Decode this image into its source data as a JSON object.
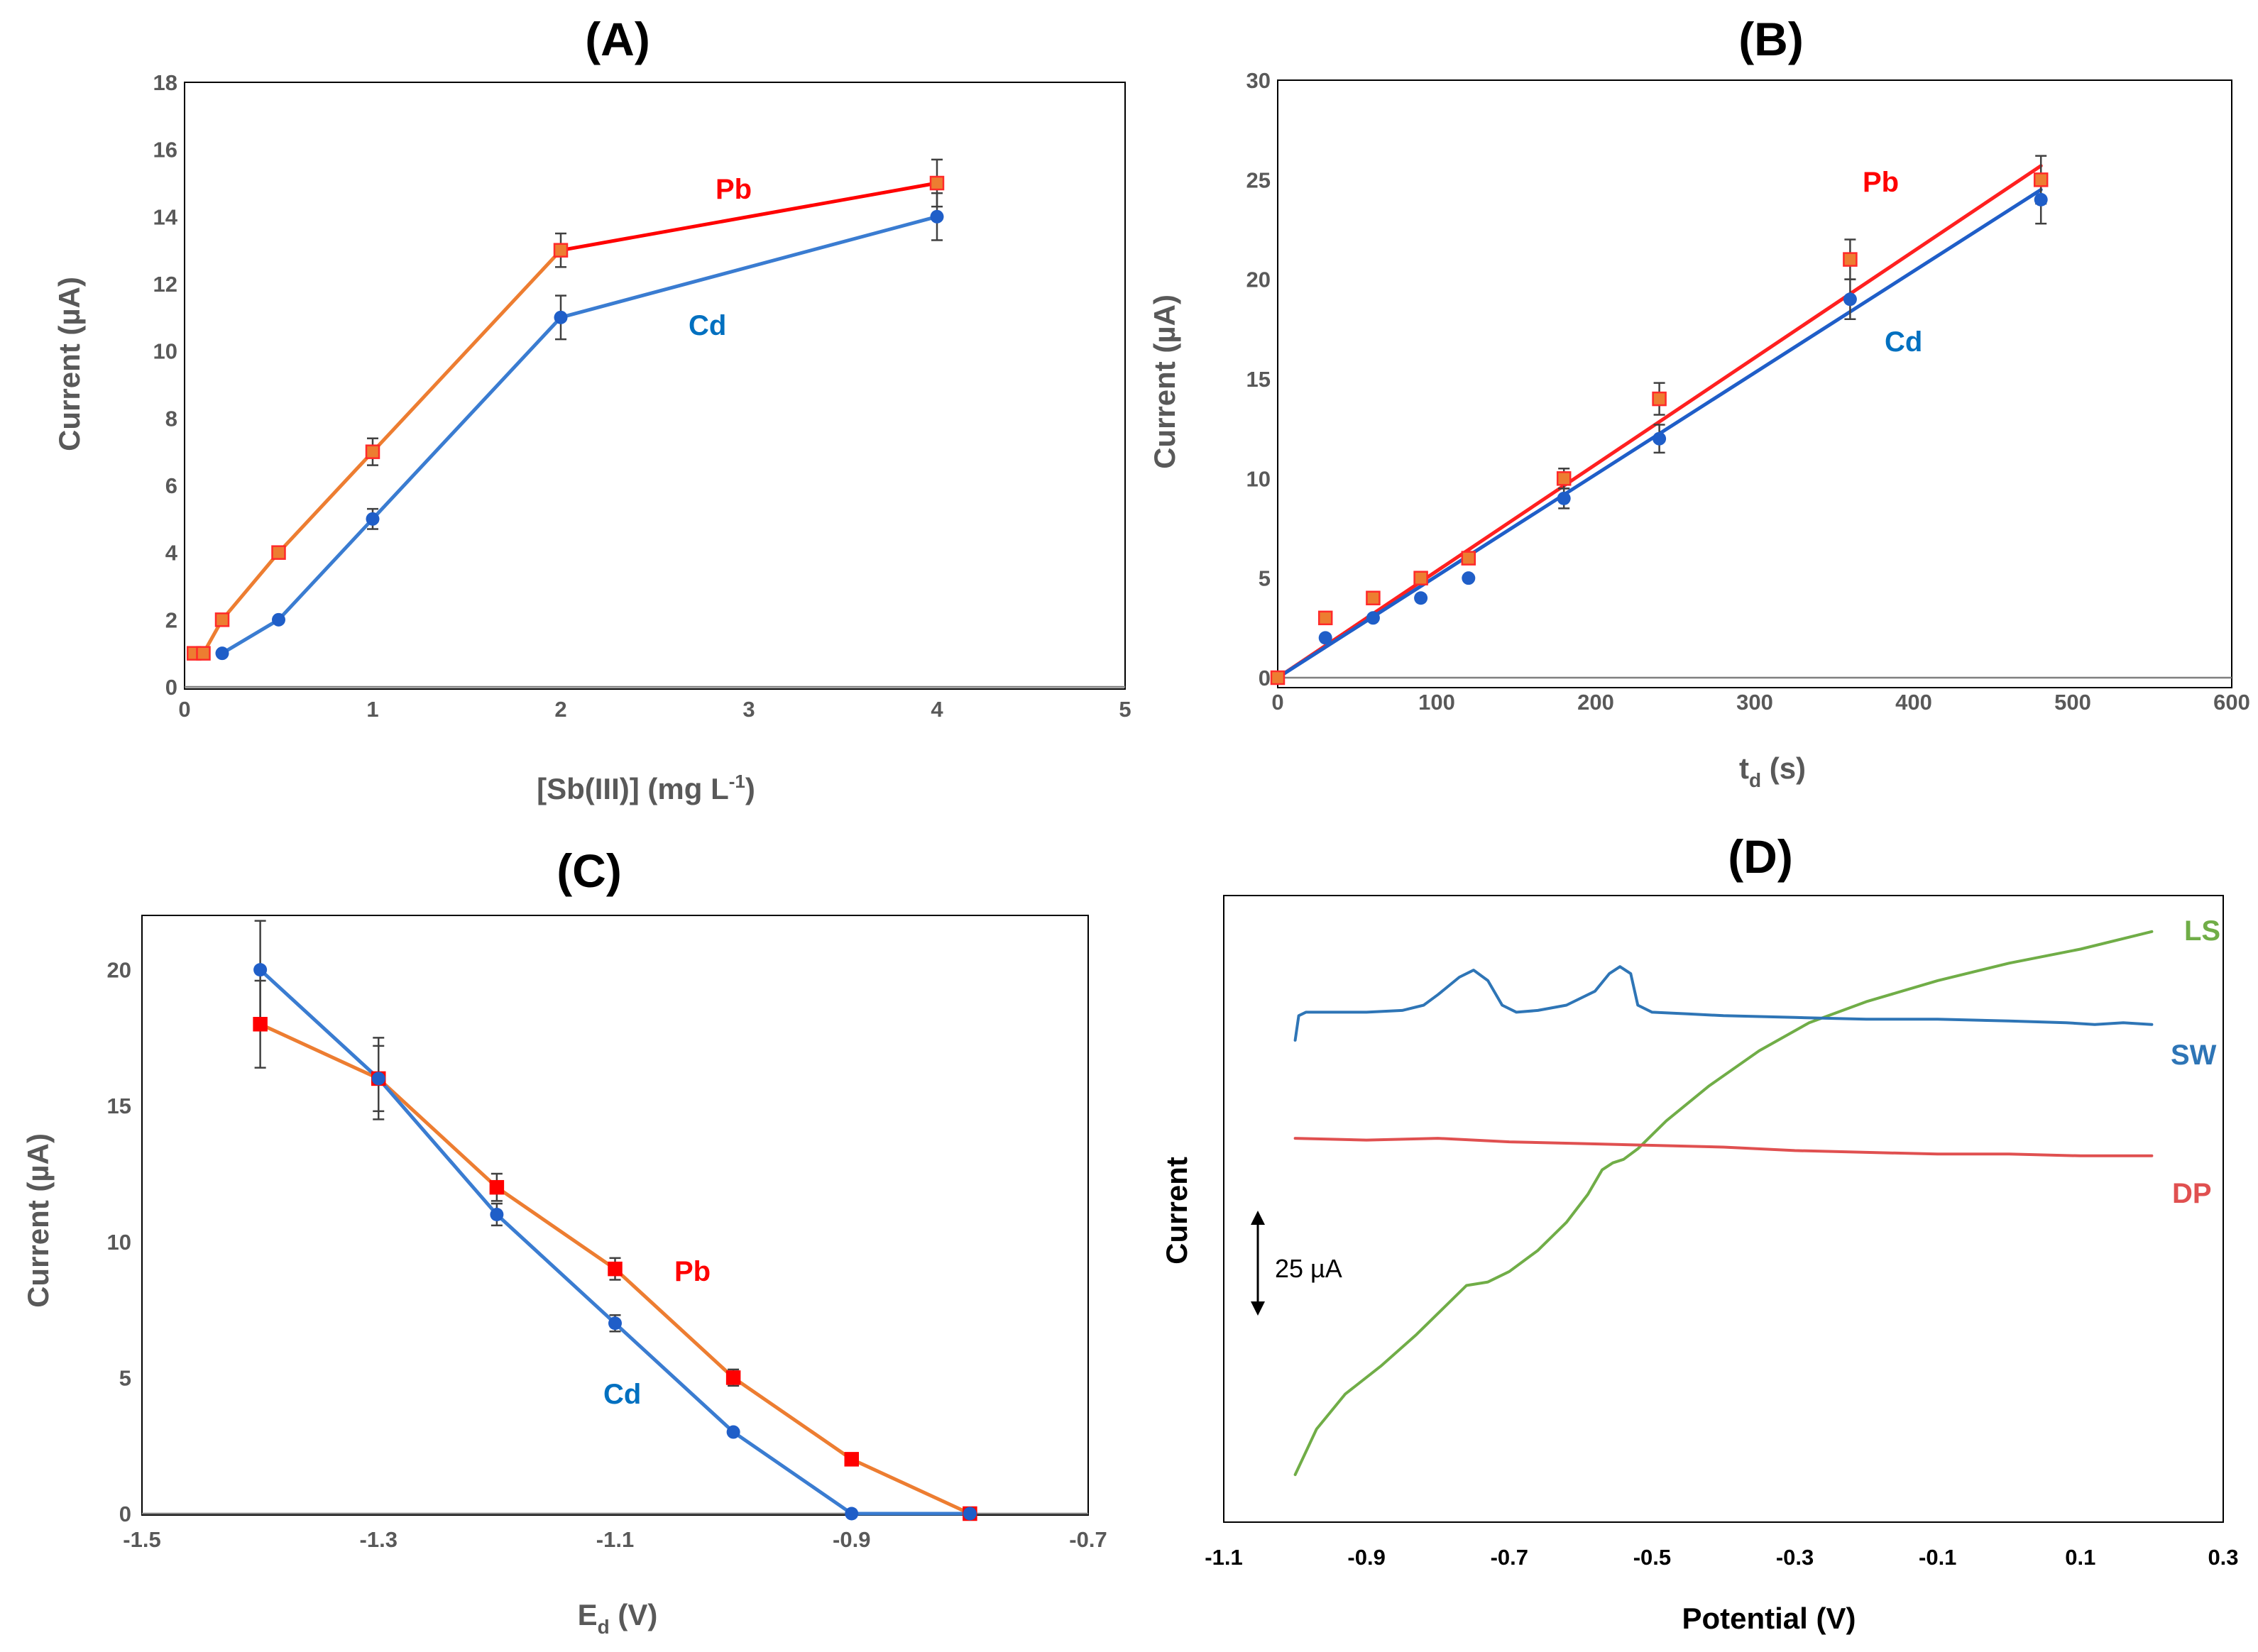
{
  "chart_data": [
    {
      "panel": "A",
      "type": "line",
      "title": "(A)",
      "xlabel": "[Sb(III)] (mg L",
      "xlabel_sup": "-1",
      "xlabel_end": ")",
      "ylabel": "Current (µA)",
      "xlim": [
        0,
        5
      ],
      "ylim": [
        0,
        18
      ],
      "xticks": [
        "0",
        "1",
        "2",
        "3",
        "4",
        "5"
      ],
      "yticks": [
        "0",
        "2",
        "4",
        "6",
        "8",
        "10",
        "12",
        "14",
        "16",
        "18"
      ],
      "series": [
        {
          "name": "Pb",
          "label_color": "#ff0000",
          "marker_color": "#ed7d31",
          "x": [
            0.05,
            0.1,
            0.2,
            0.5,
            1,
            2,
            4
          ],
          "y": [
            1,
            1,
            2,
            4,
            7,
            13,
            15
          ],
          "err": [
            0,
            0,
            0,
            0,
            0.4,
            0.5,
            0.7
          ],
          "line_segments": [
            {
              "x": [
                0.05,
                0.1,
                0.2,
                0.5,
                1,
                2
              ],
              "color": "#ed7d31"
            },
            {
              "x": [
                2,
                4
              ],
              "color": "#ff0000"
            }
          ]
        },
        {
          "name": "Cd",
          "label_color": "#0070c0",
          "marker_color": "#1f5ec8",
          "x": [
            0.2,
            0.5,
            1,
            2,
            4
          ],
          "y": [
            1,
            2,
            5,
            11,
            14
          ],
          "err": [
            0,
            0,
            0.3,
            0.65,
            0.7
          ],
          "line_color": "#3a7cd1"
        }
      ]
    },
    {
      "panel": "B",
      "type": "scatter",
      "title": "(B)",
      "xlabel": "t",
      "xlabel_sub": "d",
      "xlabel_end": " (s)",
      "ylabel": "Current (µA)",
      "xlim": [
        0,
        600
      ],
      "ylim": [
        0,
        30
      ],
      "xticks": [
        "0",
        "100",
        "200",
        "300",
        "400",
        "500",
        "600"
      ],
      "yticks": [
        "0",
        "5",
        "10",
        "15",
        "20",
        "25",
        "30"
      ],
      "series": [
        {
          "name": "Pb",
          "label_color": "#ff0000",
          "marker_color": "#ed7d31",
          "x": [
            0,
            30,
            60,
            90,
            120,
            180,
            240,
            360,
            480
          ],
          "y": [
            0,
            3,
            4,
            5,
            6,
            10,
            14,
            21,
            25
          ],
          "err": [
            0,
            0,
            0,
            0,
            0,
            0.5,
            0.8,
            1.0,
            1.2
          ],
          "trendline": {
            "x": [
              0,
              480
            ],
            "y": [
              0,
              25.7
            ],
            "color": "#ff2020"
          }
        },
        {
          "name": "Cd",
          "label_color": "#0070c0",
          "marker_color": "#1f5ec8",
          "x": [
            0,
            30,
            60,
            90,
            120,
            180,
            240,
            360,
            480
          ],
          "y": [
            0,
            2,
            3,
            4,
            5,
            9,
            12,
            19,
            24
          ],
          "err": [
            0,
            0,
            0,
            0,
            0,
            0.5,
            0.7,
            1.0,
            1.2
          ],
          "trendline": {
            "x": [
              0,
              480
            ],
            "y": [
              0,
              24.5
            ],
            "color": "#1f5ec8"
          }
        }
      ]
    },
    {
      "panel": "C",
      "type": "line",
      "title": "(C)",
      "xlabel": "E",
      "xlabel_sub": "d",
      "xlabel_end": " (V)",
      "ylabel": "Current (µA)",
      "xlim": [
        -1.5,
        -0.7
      ],
      "ylim": [
        0,
        22
      ],
      "xticks": [
        "-1.5",
        "-1.3",
        "-1.1",
        "-0.9",
        "-0.7"
      ],
      "yticks": [
        "0",
        "5",
        "10",
        "15",
        "20"
      ],
      "series": [
        {
          "name": "Pb",
          "label_color": "#ff0000",
          "marker_color": "#ff0000",
          "x": [
            -1.4,
            -1.3,
            -1.2,
            -1.1,
            -1.0,
            -0.9,
            -0.8
          ],
          "y": [
            18,
            16,
            12,
            9,
            5,
            2,
            0
          ],
          "err": [
            1.6,
            1.2,
            0.5,
            0.4,
            0.3,
            0,
            0
          ],
          "line_color": "#ed7d31"
        },
        {
          "name": "Cd",
          "label_color": "#0070c0",
          "marker_color": "#1f5ec8",
          "x": [
            -1.4,
            -1.3,
            -1.2,
            -1.1,
            -1.0,
            -0.9,
            -0.8
          ],
          "y": [
            20,
            16,
            11,
            7,
            3,
            0,
            0
          ],
          "err": [
            1.8,
            1.5,
            0.4,
            0.3,
            0,
            0,
            0
          ],
          "line_color": "#3a7cd1"
        }
      ]
    },
    {
      "panel": "D",
      "type": "line",
      "title": "(D)",
      "xlabel": "Potential (V)",
      "ylabel": "Current",
      "xlim": [
        -1.1,
        0.3
      ],
      "xticks": [
        "-1.1",
        "-0.9",
        "-0.7",
        "-0.5",
        "-0.3",
        "-0.1",
        "0.1",
        "0.3"
      ],
      "scale_bar_label": "25 µA",
      "series": [
        {
          "name": "LS",
          "color": "#70ad47",
          "x": [
            -1.0,
            -0.97,
            -0.93,
            -0.88,
            -0.83,
            -0.79,
            -0.76,
            -0.73,
            -0.7,
            -0.66,
            -0.62,
            -0.59,
            -0.57,
            -0.555,
            -0.54,
            -0.52,
            -0.48,
            -0.42,
            -0.35,
            -0.28,
            -0.2,
            -0.1,
            0.0,
            0.1,
            0.2
          ],
          "y": [
            2,
            15,
            25,
            33,
            42,
            50,
            56,
            57,
            60,
            66,
            74,
            82,
            89,
            91,
            92,
            95,
            103,
            113,
            123,
            131,
            137,
            143,
            148,
            152,
            157
          ]
        },
        {
          "name": "SW",
          "color": "#2e75b6",
          "x": [
            -1.0,
            -0.995,
            -0.985,
            -0.95,
            -0.9,
            -0.85,
            -0.82,
            -0.8,
            -0.77,
            -0.75,
            -0.73,
            -0.71,
            -0.69,
            -0.66,
            -0.62,
            -0.58,
            -0.56,
            -0.545,
            -0.53,
            -0.52,
            -0.5,
            -0.45,
            -0.4,
            -0.3,
            -0.2,
            -0.1,
            0.0,
            0.08,
            0.12,
            0.16,
            0.2
          ],
          "y": [
            126,
            133,
            134,
            134,
            134,
            134.5,
            136,
            139,
            144,
            146,
            143,
            136,
            134,
            134.5,
            136,
            140,
            145,
            147,
            145,
            136,
            134,
            133.5,
            133,
            132.5,
            132,
            132,
            131.5,
            131,
            130.5,
            131,
            130.5
          ]
        },
        {
          "name": "DP",
          "color": "#e05050",
          "x": [
            -1.0,
            -0.9,
            -0.8,
            -0.7,
            -0.6,
            -0.5,
            -0.4,
            -0.3,
            -0.2,
            -0.1,
            0.0,
            0.1,
            0.2
          ],
          "y": [
            98,
            97.5,
            98,
            97,
            96.5,
            96,
            95.5,
            94.5,
            94,
            93.5,
            93.5,
            93,
            93
          ]
        }
      ]
    }
  ]
}
